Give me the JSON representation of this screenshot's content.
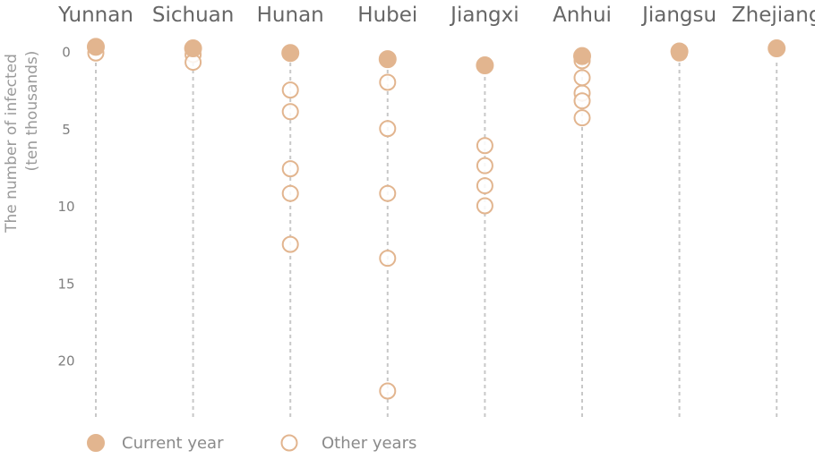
{
  "chart_data": {
    "type": "scatter",
    "title": "",
    "ylabel_line1": "The number of infected",
    "ylabel_line2": "(ten thousands)",
    "categories": [
      "Yunnan",
      "Sichuan",
      "Hunan",
      "Hubei",
      "Jiangxi",
      "Anhui",
      "Jiangsu",
      "Zhejiang"
    ],
    "y_inverted": true,
    "ylim": [
      0,
      23
    ],
    "yticks": [
      0,
      5,
      10,
      15,
      20
    ],
    "grid": false,
    "legend_position": "bottom-left",
    "colors": {
      "marker": "#e2b58f",
      "stem": "#c8c8c8"
    },
    "series": [
      {
        "name": "Current year",
        "style": "filled",
        "values": [
          -0.3,
          -0.2,
          0.1,
          0.5,
          0.9,
          0.3,
          0.0,
          -0.2
        ]
      },
      {
        "name": "Other years",
        "style": "hollow",
        "values": [
          [
            0.1
          ],
          [
            0.2,
            0.7
          ],
          [
            2.5,
            3.9,
            7.6,
            9.2,
            12.5
          ],
          [
            2.0,
            5.0,
            9.2,
            13.4,
            22.0
          ],
          [
            0.9,
            6.1,
            7.4,
            8.7,
            10.0
          ],
          [
            0.6,
            1.7,
            2.7,
            3.2,
            4.3
          ],
          [
            0.1
          ],
          [
            -0.2
          ]
        ]
      }
    ]
  }
}
